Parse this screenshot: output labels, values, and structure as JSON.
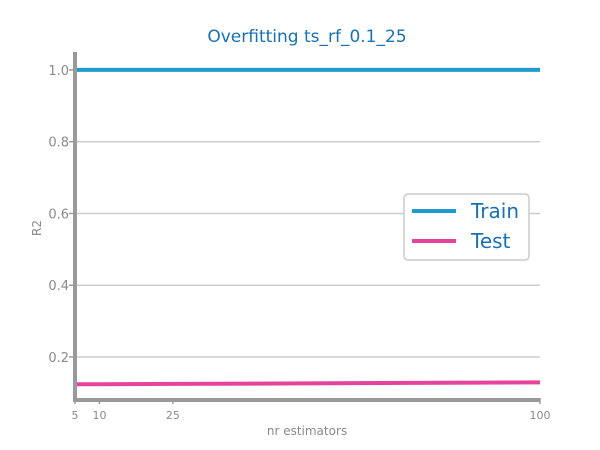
{
  "chart_data": {
    "type": "line",
    "title": "Overfitting ts_rf_0.1_25",
    "xlabel": "nr estimators",
    "ylabel": "R2",
    "x": [
      5,
      10,
      25,
      100
    ],
    "x_ticks": [
      "5",
      "10",
      "25",
      "100"
    ],
    "y_ticks": [
      "0.2",
      "0.4",
      "0.6",
      "0.8",
      "1.0"
    ],
    "xlim": [
      5,
      100
    ],
    "ylim": [
      0.08,
      1.05
    ],
    "grid": "horizontal",
    "legend_position": "right",
    "series": [
      {
        "name": "Train",
        "color": "#1f9bcf",
        "values": [
          1.0,
          1.0,
          1.0,
          1.0
        ]
      },
      {
        "name": "Test",
        "color": "#e6449c",
        "values": [
          0.124,
          0.124,
          0.125,
          0.129
        ]
      }
    ],
    "colors": {
      "title": "#1a70b0",
      "axis": "#999999",
      "tick_text": "#8a8a8a",
      "grid": "#cccccc",
      "legend_text": "#1a70b0"
    }
  }
}
